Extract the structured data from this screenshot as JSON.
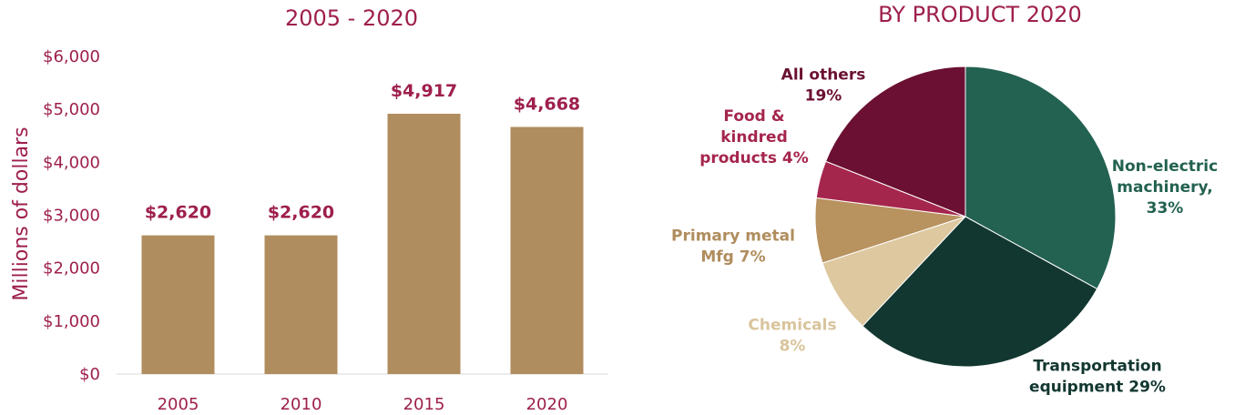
{
  "chart_data": [
    {
      "type": "bar",
      "title": "2005 - 2020",
      "ylabel": "Millions of dollars",
      "xlabel": "",
      "categories": [
        "2005",
        "2010",
        "2015",
        "2020"
      ],
      "values": [
        2620,
        2620,
        4917,
        4668
      ],
      "data_labels": [
        "$2,620",
        "$2,620",
        "$4,917",
        "$4,668"
      ],
      "ylim": [
        0,
        6000
      ],
      "yticks": [
        0,
        1000,
        2000,
        3000,
        4000,
        5000,
        6000
      ],
      "ytick_labels": [
        "$0",
        "$1,000",
        "$2,000",
        "$3,000",
        "$4,000",
        "$5,000",
        "$6,000"
      ],
      "bar_color": "#b08d5e",
      "grid": false
    },
    {
      "type": "pie",
      "title": "BY PRODUCT 2020",
      "slices": [
        {
          "label": [
            "Non-electric",
            "machinery,",
            "33%"
          ],
          "value": 33,
          "color": "#236150",
          "text_color": "#236150"
        },
        {
          "label": [
            "Transportation",
            "equipment 29%"
          ],
          "value": 29,
          "color": "#123730",
          "text_color": "#123730"
        },
        {
          "label": [
            "Chemicals",
            "8%"
          ],
          "value": 8,
          "color": "#ddc8a0",
          "text_color": "#d9c49c"
        },
        {
          "label": [
            "Primary metal",
            "Mfg 7%"
          ],
          "value": 7,
          "color": "#b8925f",
          "text_color": "#b08d5e"
        },
        {
          "label": [
            "Food &",
            "kindred",
            "products 4%"
          ],
          "value": 4,
          "color": "#a5264d",
          "text_color": "#a5264d"
        },
        {
          "label": [
            "All others",
            "19%"
          ],
          "value": 19,
          "color": "#6b1032",
          "text_color": "#6b1032"
        }
      ]
    }
  ]
}
